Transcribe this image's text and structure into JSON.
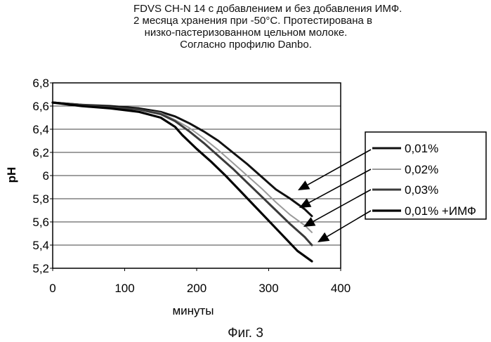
{
  "title_lines": [
    "FDVS CH-N 14 с добавлением и без добавления ИМФ.",
    "2 месяца хранения при -50°С. Протестирована в",
    "низко-пастеризованном цельном молоке.",
    "Согласно профилю Danbo."
  ],
  "caption": "Фиг. 3",
  "chart_data": {
    "type": "line",
    "xlabel": "минуты",
    "ylabel": "pH",
    "xlim": [
      0,
      400
    ],
    "ylim": [
      5.2,
      6.8
    ],
    "x_ticks": [
      0,
      100,
      200,
      300,
      400
    ],
    "y_ticks": [
      5.2,
      5.4,
      5.6,
      5.8,
      6,
      6.2,
      6.4,
      6.6,
      6.8
    ],
    "x_tick_labels": [
      "0",
      "100",
      "200",
      "300",
      "400"
    ],
    "y_tick_labels": [
      "5,2",
      "5,4",
      "5,6",
      "5,8",
      "6",
      "6,2",
      "6,4",
      "6,6",
      "6,8"
    ],
    "grid": "horizontal",
    "legend_position": "right",
    "series": [
      {
        "name": "0,01%",
        "color": "#111111",
        "style": "solid",
        "x": [
          0,
          40,
          80,
          120,
          150,
          170,
          190,
          210,
          230,
          250,
          270,
          290,
          310,
          330,
          350,
          360
        ],
        "y": [
          6.63,
          6.61,
          6.6,
          6.58,
          6.55,
          6.51,
          6.45,
          6.38,
          6.3,
          6.2,
          6.1,
          5.99,
          5.88,
          5.8,
          5.71,
          5.65
        ]
      },
      {
        "name": "0,02%",
        "color": "#9a9a9a",
        "style": "solid",
        "x": [
          0,
          40,
          80,
          120,
          150,
          170,
          190,
          210,
          230,
          250,
          270,
          290,
          310,
          330,
          350,
          360
        ],
        "y": [
          6.63,
          6.6,
          6.59,
          6.57,
          6.54,
          6.48,
          6.41,
          6.32,
          6.22,
          6.11,
          6.0,
          5.89,
          5.77,
          5.66,
          5.57,
          5.51
        ]
      },
      {
        "name": "0,03%",
        "color": "#3a3a3a",
        "style": "solid",
        "x": [
          0,
          40,
          80,
          120,
          150,
          170,
          190,
          210,
          230,
          250,
          270,
          290,
          310,
          330,
          350,
          360
        ],
        "y": [
          6.63,
          6.61,
          6.59,
          6.57,
          6.53,
          6.47,
          6.38,
          6.28,
          6.17,
          6.06,
          5.94,
          5.82,
          5.7,
          5.58,
          5.47,
          5.4
        ]
      },
      {
        "name": "0,01% +ИМФ",
        "color": "#000000",
        "style": "solid",
        "x": [
          0,
          40,
          80,
          120,
          150,
          170,
          180,
          200,
          220,
          240,
          260,
          280,
          300,
          320,
          340,
          360
        ],
        "y": [
          6.63,
          6.6,
          6.58,
          6.55,
          6.5,
          6.42,
          6.35,
          6.23,
          6.12,
          6.0,
          5.87,
          5.74,
          5.61,
          5.48,
          5.35,
          5.26
        ]
      }
    ]
  }
}
